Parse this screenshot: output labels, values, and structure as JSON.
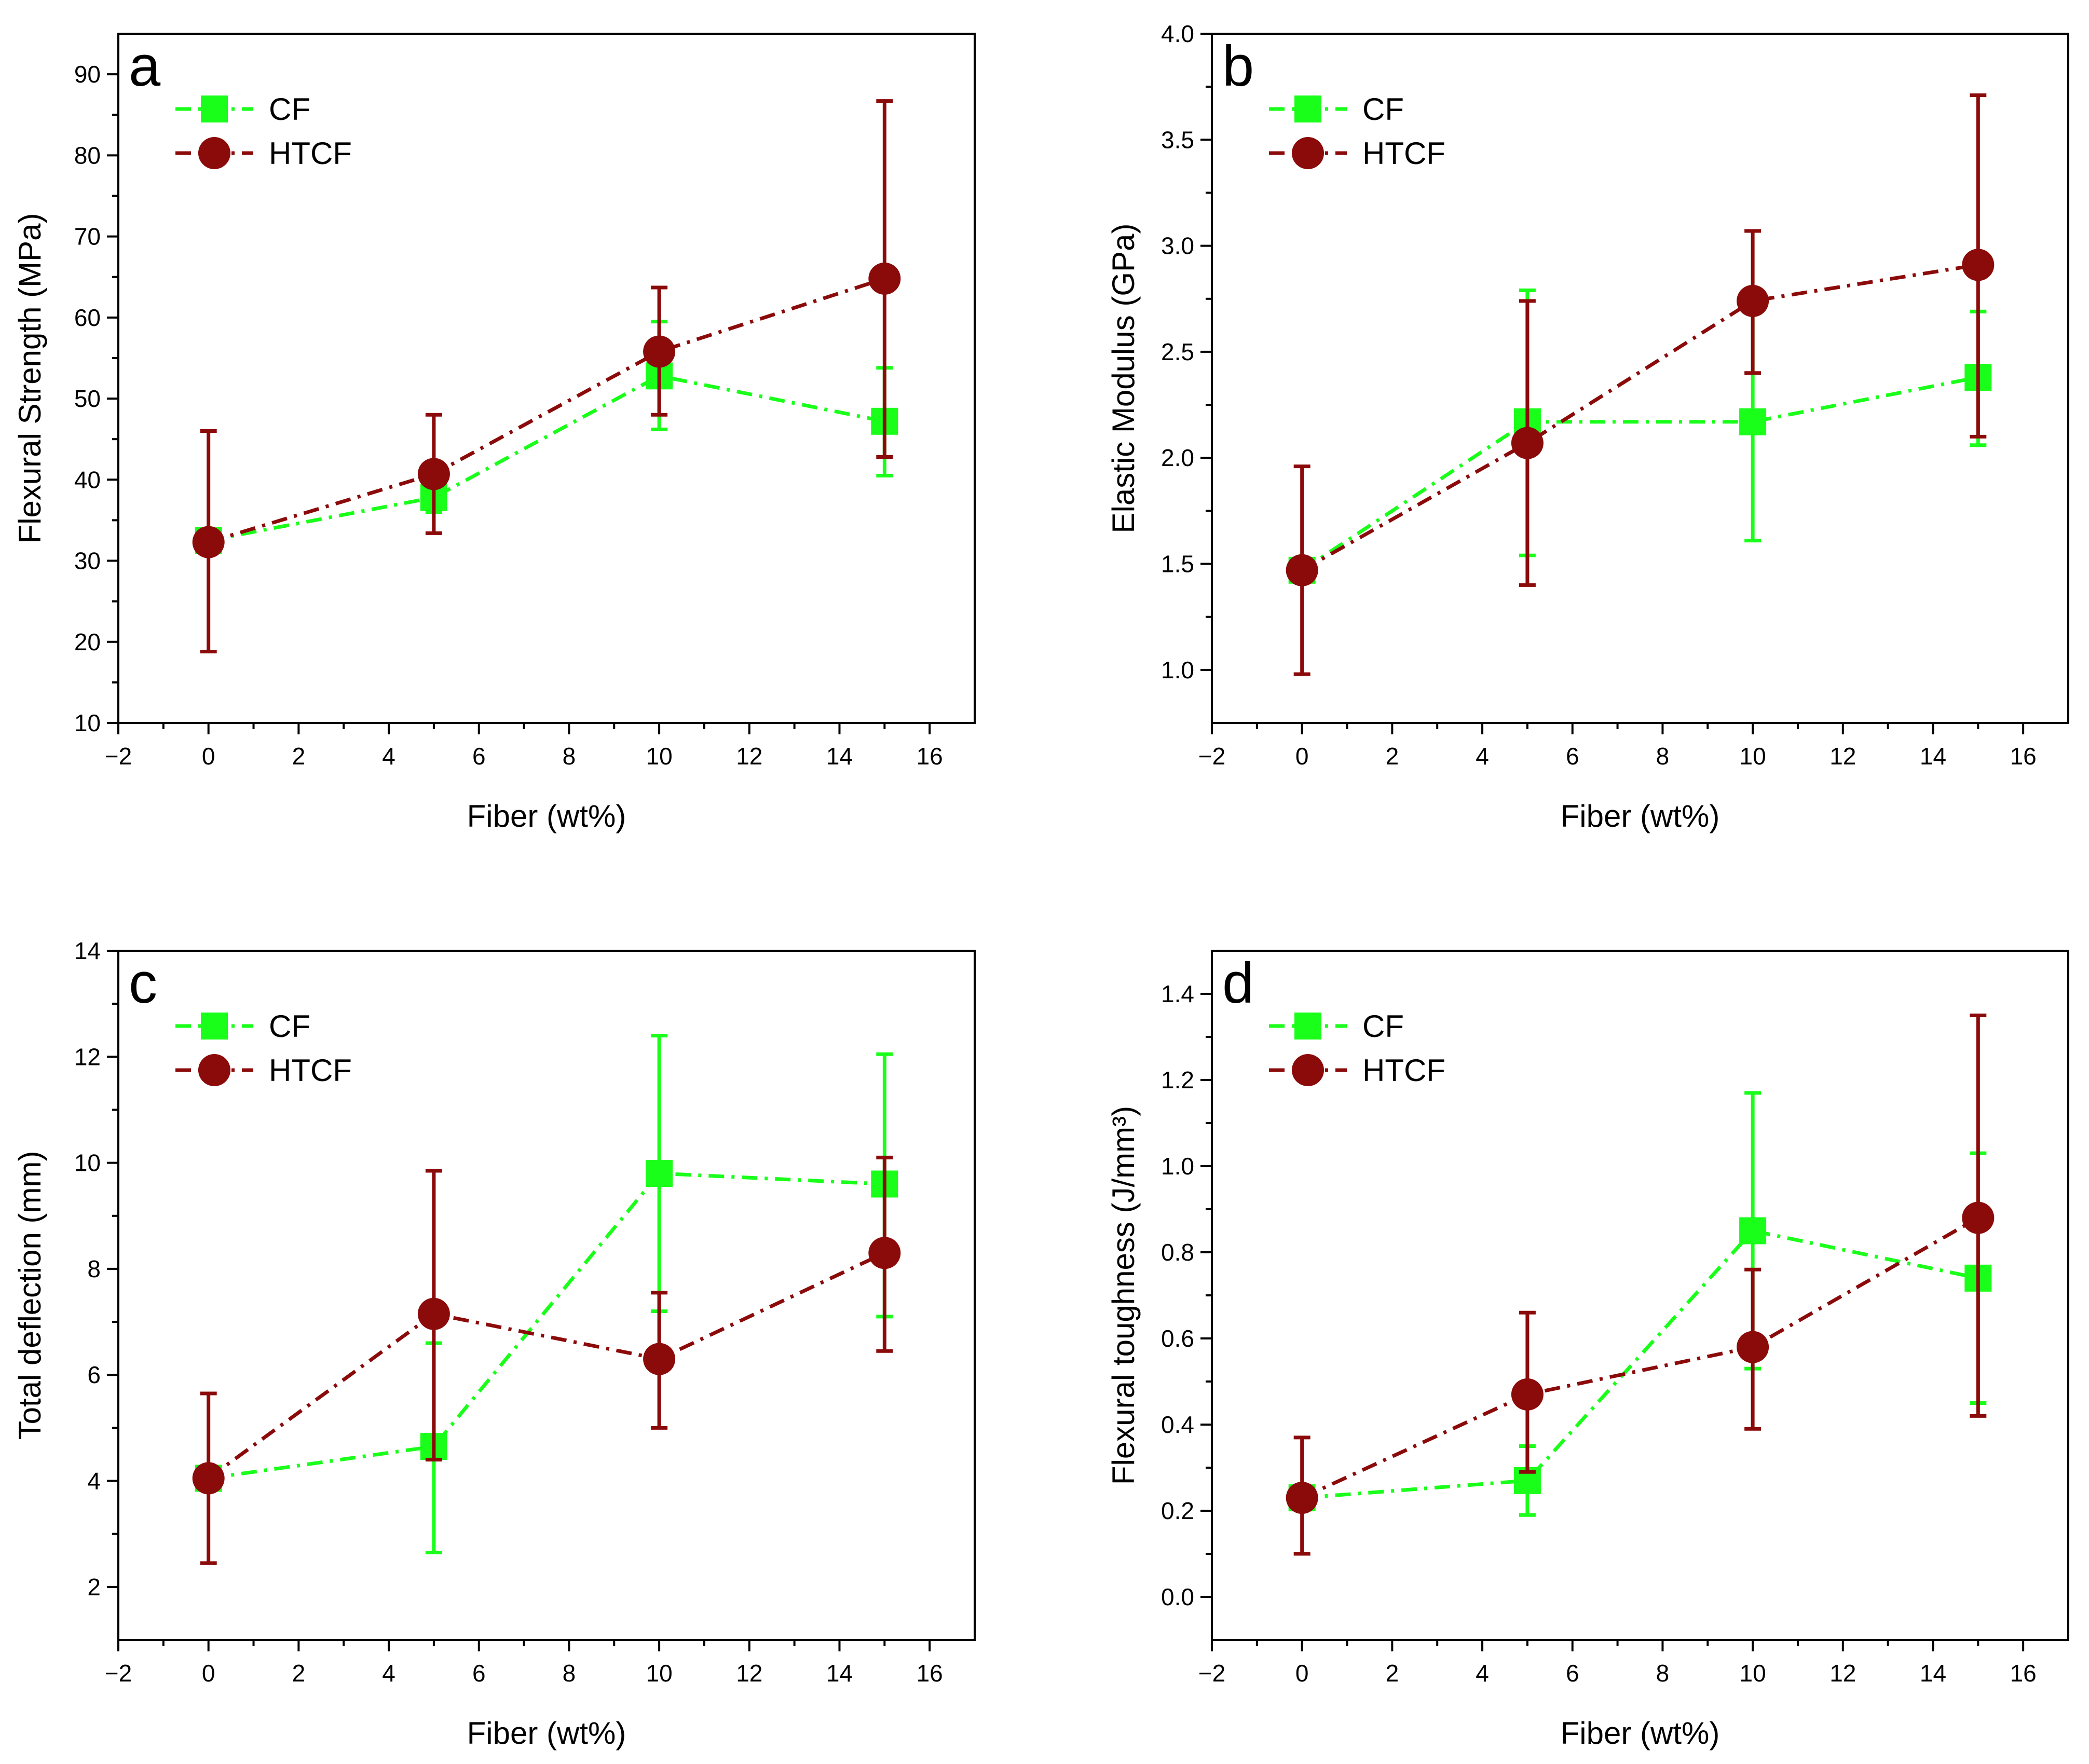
{
  "colors": {
    "CF": "#1aff1a",
    "HTCF": "#8b0a0a",
    "axis": "#000000"
  },
  "chart_data": [
    {
      "type": "line",
      "panel": "a",
      "xlabel": "Fiber (wt%)",
      "ylabel": "Flexural Strength (MPa)",
      "xlim": [
        -2,
        17
      ],
      "ylim": [
        10,
        95
      ],
      "xticks": [
        -2,
        0,
        2,
        4,
        6,
        8,
        10,
        12,
        14,
        16
      ],
      "yticks": [
        10,
        20,
        30,
        40,
        50,
        60,
        70,
        80,
        90
      ],
      "legend": "top-left",
      "x": [
        0,
        5,
        10,
        15
      ],
      "series": [
        {
          "name": "CF",
          "values": [
            32.5,
            37.8,
            52.8,
            47.2
          ],
          "err_low": [
            31.8,
            36.0,
            46.2,
            40.5
          ],
          "err_high": [
            33.3,
            41.0,
            59.5,
            53.8
          ]
        },
        {
          "name": "HTCF",
          "values": [
            32.3,
            40.7,
            55.8,
            64.8
          ],
          "err_low": [
            18.8,
            33.4,
            48.0,
            42.8
          ],
          "err_high": [
            46.0,
            48.0,
            63.7,
            86.7
          ]
        }
      ]
    },
    {
      "type": "line",
      "panel": "b",
      "xlabel": "Fiber (wt%)",
      "ylabel": "Elastic Modulus (GPa)",
      "xlim": [
        -2,
        17
      ],
      "ylim": [
        0.75,
        4.0
      ],
      "xticks": [
        -2,
        0,
        2,
        4,
        6,
        8,
        10,
        12,
        14,
        16
      ],
      "yticks": [
        1.0,
        1.5,
        2.0,
        2.5,
        3.0,
        3.5,
        4.0
      ],
      "ytick_labels": [
        "1.0",
        "1.5",
        "2.0",
        "2.5",
        "3.0",
        "3.5",
        "4.0"
      ],
      "legend": "top-left",
      "x": [
        0,
        5,
        10,
        15
      ],
      "series": [
        {
          "name": "CF",
          "values": [
            1.47,
            2.17,
            2.17,
            2.38
          ],
          "err_low": [
            1.44,
            1.54,
            1.61,
            2.06
          ],
          "err_high": [
            1.5,
            2.79,
            2.72,
            2.69
          ]
        },
        {
          "name": "HTCF",
          "values": [
            1.47,
            2.07,
            2.74,
            2.91
          ],
          "err_low": [
            0.98,
            1.4,
            2.4,
            2.1
          ],
          "err_high": [
            1.96,
            2.74,
            3.07,
            3.71
          ]
        }
      ]
    },
    {
      "type": "line",
      "panel": "c",
      "xlabel": "Fiber (wt%)",
      "ylabel": "Total deflection (mm)",
      "xlim": [
        -2,
        17
      ],
      "ylim": [
        1,
        14
      ],
      "xticks": [
        -2,
        0,
        2,
        4,
        6,
        8,
        10,
        12,
        14,
        16
      ],
      "yticks": [
        2,
        4,
        6,
        8,
        10,
        12,
        14
      ],
      "legend": "top-left",
      "x": [
        0,
        5,
        10,
        15
      ],
      "series": [
        {
          "name": "CF",
          "values": [
            4.05,
            4.65,
            9.8,
            9.6
          ],
          "err_low": [
            3.9,
            2.65,
            7.2,
            7.1
          ],
          "err_high": [
            4.2,
            6.6,
            12.4,
            12.05
          ]
        },
        {
          "name": "HTCF",
          "values": [
            4.05,
            7.15,
            6.3,
            8.3
          ],
          "err_low": [
            2.45,
            4.4,
            5.0,
            6.45
          ],
          "err_high": [
            5.65,
            9.85,
            7.55,
            10.1
          ]
        }
      ]
    },
    {
      "type": "line",
      "panel": "d",
      "xlabel": "Fiber (wt%)",
      "ylabel": "Flexural toughness (J/mm³)",
      "xlim": [
        -2,
        17
      ],
      "ylim": [
        -0.1,
        1.5
      ],
      "xticks": [
        -2,
        0,
        2,
        4,
        6,
        8,
        10,
        12,
        14,
        16
      ],
      "yticks": [
        0.0,
        0.2,
        0.4,
        0.6,
        0.8,
        1.0,
        1.2,
        1.4
      ],
      "ytick_labels": [
        "0.0",
        "0.2",
        "0.4",
        "0.6",
        "0.8",
        "1.0",
        "1.2",
        "1.4"
      ],
      "legend": "top-left",
      "x": [
        0,
        5,
        10,
        15
      ],
      "series": [
        {
          "name": "CF",
          "values": [
            0.23,
            0.27,
            0.85,
            0.74
          ],
          "err_low": [
            0.21,
            0.19,
            0.53,
            0.45
          ],
          "err_high": [
            0.25,
            0.35,
            1.17,
            1.03
          ]
        },
        {
          "name": "HTCF",
          "values": [
            0.23,
            0.47,
            0.58,
            0.88
          ],
          "err_low": [
            0.1,
            0.29,
            0.39,
            0.42
          ],
          "err_high": [
            0.37,
            0.66,
            0.76,
            1.35
          ]
        }
      ]
    }
  ]
}
